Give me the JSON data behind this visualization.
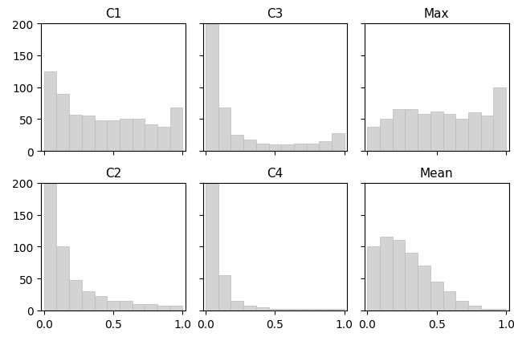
{
  "titles": [
    "C1",
    "C3",
    "Max",
    "C2",
    "C4",
    "Mean"
  ],
  "bar_color": "#d3d3d3",
  "bar_edgecolor": "#bbbbbb",
  "ylim": [
    0,
    200
  ],
  "xlim": [
    0.0,
    1.0
  ],
  "num_bins": 11,
  "histograms": {
    "C1": [
      125,
      90,
      57,
      56,
      48,
      48,
      50,
      50,
      42,
      38,
      68
    ],
    "C3": [
      200,
      68,
      25,
      18,
      12,
      10,
      10,
      12,
      12,
      15,
      28
    ],
    "Max": [
      38,
      50,
      65,
      65,
      58,
      62,
      58,
      50,
      60,
      55,
      100
    ],
    "C2": [
      200,
      100,
      48,
      30,
      22,
      15,
      15,
      10,
      10,
      8,
      8
    ],
    "C4": [
      200,
      55,
      15,
      8,
      5,
      3,
      2,
      2,
      2,
      2,
      2
    ],
    "Mean": [
      100,
      115,
      110,
      90,
      70,
      45,
      30,
      15,
      8,
      3,
      2
    ]
  },
  "layout": [
    [
      "C1",
      "C3",
      "Max"
    ],
    [
      "C2",
      "C4",
      "Mean"
    ]
  ],
  "figsize": [
    6.4,
    4.31
  ],
  "dpi": 100
}
